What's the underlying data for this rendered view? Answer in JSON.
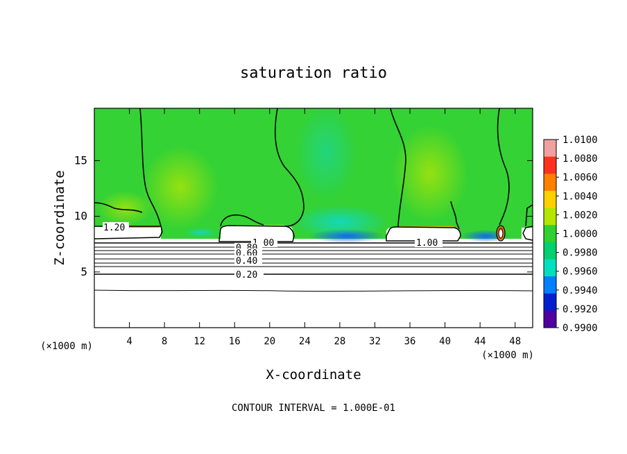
{
  "chart_data": {
    "type": "heatmap",
    "title": "saturation ratio",
    "xlabel": "X-coordinate",
    "ylabel": "Z-coordinate",
    "x_unit_label_left": "(×1000 m)",
    "x_unit_label_right": "(×1000 m)",
    "xlim": [
      0,
      50
    ],
    "ylim": [
      0,
      19.7
    ],
    "x_ticks": [
      4,
      8,
      12,
      16,
      20,
      24,
      28,
      32,
      36,
      40,
      44,
      48
    ],
    "x_tick_labels": [
      "4",
      "8",
      "12",
      "16",
      "20",
      "24",
      "28",
      "32",
      "36",
      "40",
      "44",
      "48"
    ],
    "y_ticks": [
      5,
      10,
      15
    ],
    "y_tick_labels": [
      "5",
      "10",
      "15"
    ],
    "colorbar": {
      "min": 0.99,
      "max": 1.01,
      "tick_labels": [
        "1.0100",
        "1.0080",
        "1.0060",
        "1.0040",
        "1.0020",
        "1.0000",
        "0.9980",
        "0.9960",
        "0.9940",
        "0.9920",
        "0.9900"
      ],
      "colors": [
        "#f0a0a0",
        "#ff3020",
        "#ff8000",
        "#ffd000",
        "#b4e600",
        "#30d030",
        "#00d070",
        "#00e0c0",
        "#0080ff",
        "#0020d0",
        "#5000a0"
      ]
    },
    "contour_labels": [
      "1.20",
      "1.00",
      "0.80",
      "0.60",
      "0.40",
      "0.20",
      "1.00"
    ],
    "contour_interval_text": "CONTOUR INTERVAL = 1.000E-01",
    "grid": false
  }
}
